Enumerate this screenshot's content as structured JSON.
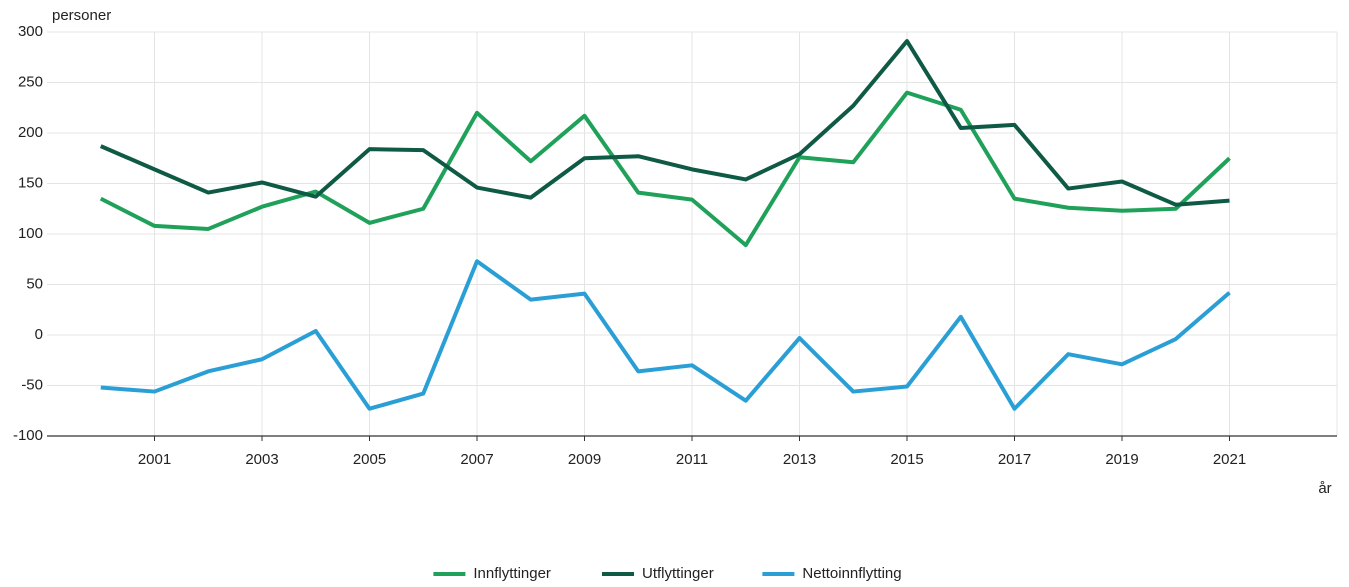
{
  "chart_data": {
    "type": "line",
    "y_label": "personer",
    "x_label": "år",
    "x": [
      2000,
      2001,
      2002,
      2003,
      2004,
      2005,
      2006,
      2007,
      2008,
      2009,
      2010,
      2011,
      2012,
      2013,
      2014,
      2015,
      2016,
      2017,
      2018,
      2019,
      2020,
      2021
    ],
    "series": [
      {
        "name": "Innflyttinger",
        "color": "#1fa15a",
        "values": [
          135,
          108,
          105,
          127,
          142,
          111,
          125,
          220,
          172,
          217,
          141,
          134,
          89,
          176,
          171,
          240,
          223,
          135,
          126,
          123,
          125,
          175
        ]
      },
      {
        "name": "Utflyttinger",
        "color": "#0f5a45",
        "values": [
          187,
          164,
          141,
          151,
          137,
          184,
          183,
          146,
          136,
          175,
          177,
          164,
          154,
          179,
          227,
          291,
          205,
          208,
          145,
          152,
          129,
          133
        ]
      },
      {
        "name": "Nettoinnflytting",
        "color": "#2a9fd6",
        "values": [
          -52,
          -56,
          -36,
          -24,
          4,
          -73,
          -58,
          73,
          35,
          41,
          -36,
          -30,
          -65,
          -3,
          -56,
          -51,
          18,
          -73,
          -19,
          -29,
          -4,
          42
        ]
      }
    ],
    "xlim": [
      1999,
      2023
    ],
    "xticks": [
      2001,
      2003,
      2005,
      2007,
      2009,
      2011,
      2013,
      2015,
      2017,
      2019,
      2021
    ],
    "ylim": [
      -100,
      300
    ],
    "yticks": [
      -100,
      -50,
      0,
      50,
      100,
      150,
      200,
      250,
      300
    ],
    "grid": true,
    "legend": "bottom"
  }
}
